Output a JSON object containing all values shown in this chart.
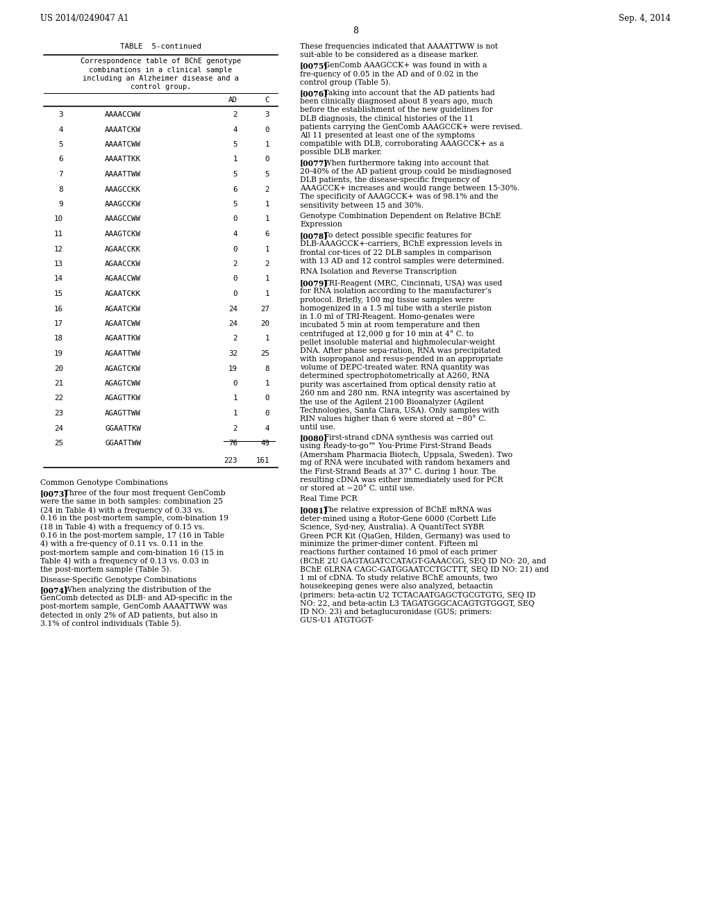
{
  "header_left": "US 2014/0249047 A1",
  "header_right": "Sep. 4, 2014",
  "page_number": "8",
  "table_title": "TABLE  5-continued",
  "table_subtitle_lines": [
    "Correspondence table of BChE genotype",
    "combinations in a clinical sample",
    "including an Alzheimer disease and a",
    "control group."
  ],
  "table_rows": [
    [
      "3",
      "AAAACCWW",
      "2",
      "3"
    ],
    [
      "4",
      "AAAATCKW",
      "4",
      "0"
    ],
    [
      "5",
      "AAAATCWW",
      "5",
      "1"
    ],
    [
      "6",
      "AAAATTKK",
      "1",
      "0"
    ],
    [
      "7",
      "AAAATTWW",
      "5",
      "5"
    ],
    [
      "8",
      "AAAGCCKK",
      "6",
      "2"
    ],
    [
      "9",
      "AAAGCCKW",
      "5",
      "1"
    ],
    [
      "10",
      "AAAGCCWW",
      "0",
      "1"
    ],
    [
      "11",
      "AAAGTCKW",
      "4",
      "6"
    ],
    [
      "12",
      "AGAACCKK",
      "0",
      "1"
    ],
    [
      "13",
      "AGAACCKW",
      "2",
      "2"
    ],
    [
      "14",
      "AGAACCWW",
      "0",
      "1"
    ],
    [
      "15",
      "AGAATCKK",
      "0",
      "1"
    ],
    [
      "16",
      "AGAATCKW",
      "24",
      "27"
    ],
    [
      "17",
      "AGAATCWW",
      "24",
      "20"
    ],
    [
      "18",
      "AGAATTKW",
      "2",
      "1"
    ],
    [
      "19",
      "AGAATTWW",
      "32",
      "25"
    ],
    [
      "20",
      "AGAGTCKW",
      "19",
      "8"
    ],
    [
      "21",
      "AGAGTCWW",
      "0",
      "1"
    ],
    [
      "22",
      "AGAGTTKW",
      "1",
      "0"
    ],
    [
      "23",
      "AGAGTTWW",
      "1",
      "0"
    ],
    [
      "24",
      "GGAATTKW",
      "2",
      "4"
    ],
    [
      "25",
      "GGAATTWW",
      "76",
      "49"
    ]
  ],
  "totals_ad": "223",
  "totals_c": "161",
  "left_body": [
    {
      "type": "heading",
      "text": "Common Genotype Combinations"
    },
    {
      "type": "para",
      "tag": "[0073]",
      "text": "Three of the four most frequent GenComb were the same in both samples: combination 25 (24 in Table 4) with a frequency of 0.33 vs. 0.16 in the post-mortem sample, com-bination 19 (18 in Table 4) with a frequency of 0.15 vs. 0.16 in the post-mortem sample, 17 (16 in Table 4) with a fre-quency of 0.11 vs. 0.11 in the post-mortem sample and com-bination 16 (15 in Table 4) with a frequency of 0.13 vs. 0.03 in the post-mortem sample (Table 5)."
    },
    {
      "type": "heading",
      "text": "Disease-Specific Genotype Combinations"
    },
    {
      "type": "para",
      "tag": "[0074]",
      "text": "When analyzing the distribution of the GenComb detected as DLB- and AD-specific in the post-mortem sample, GenComb AAAATTWW was detected in only 2% of AD patients, but also in 3.1% of control individuals (Table 5)."
    }
  ],
  "right_body": [
    {
      "type": "plain",
      "text": "These frequencies indicated that AAAATTWW is not suit-able to be considered as a disease marker."
    },
    {
      "type": "para",
      "tag": "[0075]",
      "text": "GenComb AAAGCCK+ was found in with a fre-quency of 0.05 in the AD and of 0.02 in the control group (Table 5)."
    },
    {
      "type": "para",
      "tag": "[0076]",
      "text": "Taking into account that the AD patients had been clinically diagnosed about 8 years ago, much before the establishment of the new guidelines for DLB diagnosis, the clinical histories of the 11 patients carrying the GenComb AAAGCCK+ were revised. All 11 presented at least one of the symptoms compatible with DLB, corroborating AAAGCCK+ as a possible DLB marker."
    },
    {
      "type": "para",
      "tag": "[0077]",
      "text": "When furthermore taking into account that 20-40% of the AD patient group could be misdiagnosed DLB patients, the disease-specific frequency of AAAGCCK+ increases and would range between 15-30%.  The  specificity  of AAAGCCK+ was of 98.1% and the sensitivity between 15 and 30%."
    },
    {
      "type": "heading",
      "text": "Genotype Combination Dependent on Relative BChE\nExpression"
    },
    {
      "type": "para",
      "tag": "[0078]",
      "text": "To detect possible specific features for DLB-AAAGCCK+-carriers, BChE expression levels in frontal cor-tices of 22 DLB samples in comparison with 13 AD and 12 control samples were determined."
    },
    {
      "type": "heading",
      "text": "RNA Isolation and Reverse Transcription"
    },
    {
      "type": "para",
      "tag": "[0079]",
      "text": "TRI-Reagent (MRC, Cincinnati, USA) was used for RNA isolation according to the manufacturer’s protocol. Briefly, 100 mg tissue samples were homogenized in a 1.5 ml tube with a sterile piston in 1.0 ml of TRI-Reagent. Homo-genates were incubated 5 min at room temperature and then centrifuged at 12,000 g for 10 min at 4° C. to pellet insoluble material and highmolecular-weight DNA. After phase sepa-ration, RNA was precipitated with isopropanol and resus-pended in an appropriate volume of DEPC-treated water. RNA quantity was determined spectrophotometrically at A260, RNA purity was ascertained from optical density ratio at 260 nm and 280 nm. RNA integrity was ascertained by the use of the Agilent 2100 Bioanalyzer (Agilent Technologies, Santa Clara, USA). Only samples with RIN values higher than 6 were stored at −80° C. until use."
    },
    {
      "type": "para",
      "tag": "[0080]",
      "text": "First-strand cDNA synthesis was carried out using Ready-to-go™ You-Prime First-Strand Beads (Amersham Pharmacia Biotech, Uppsala, Sweden). Two mg of RNA were incubated with random hexamers and the First-Strand Beads at 37° C. during 1 hour. The resulting cDNA was either immediately used for PCR or stored at −20° C. until use."
    },
    {
      "type": "heading",
      "text": "Real Time PCR"
    },
    {
      "type": "para",
      "tag": "[0081]",
      "text": "The relative expression of BChE mRNA was deter-mined using a Rotor-Gene 6000 (Corbett Life Science, Syd-ney, Australia). A QuantiTect SYBR Green PCR Kit (QiaGen, Hilden, Germany) was used to minimize the primer-dimer content. Fifteen ml reactions further contained 16 pmol of each primer (BChE 2U GAGTAGATCCATAGT-GAAACGG, SEQ ID NO: 20, and BChE 6LRNA CAGC-GATGGAATCCTGCTTT, SEQ ID NO: 21) and 1 ml of cDNA. To study relative BChE amounts, two housekeeping genes were also analyzed, betaactin (primers: beta-actin U2 TCTACAATGAGCTGCGTGTG, SEQ ID NO: 22, and beta-actin L3 TAGATGGGCACAGTGTGGGT, SEQ ID NO: 23) and betaglucuronidase (GUS; primers: GUS-U1 ATGTGGT-"
    }
  ]
}
